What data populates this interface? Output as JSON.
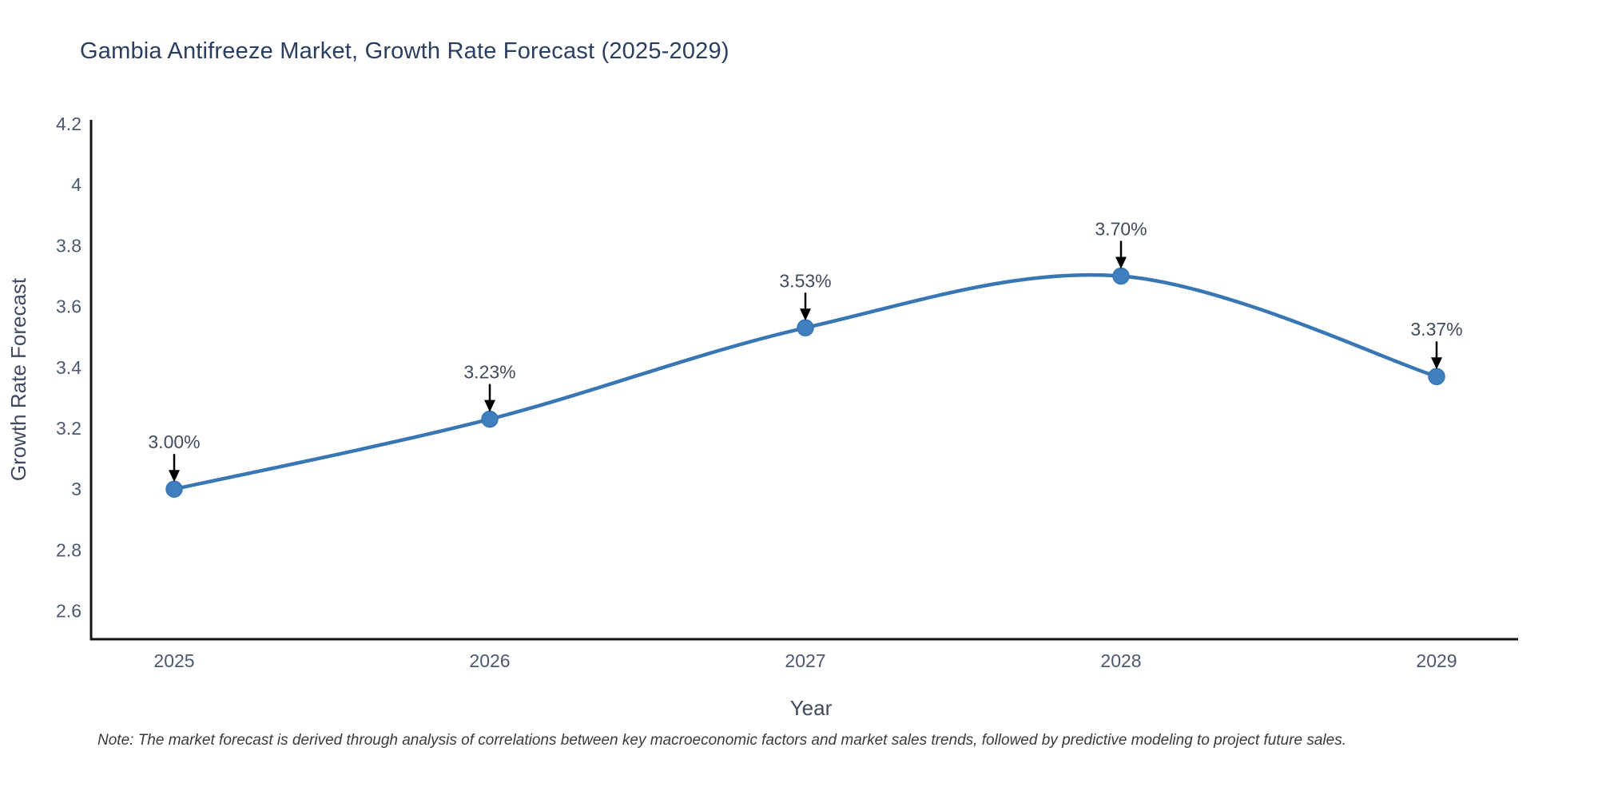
{
  "title": "Gambia Antifreeze Market, Growth Rate Forecast (2025-2029)",
  "note": "Note: The market forecast is derived through analysis of correlations between key macroeconomic factors and market sales trends, followed by predictive modeling to project future sales.",
  "colors": {
    "title_text": "#2a3f5f",
    "tick_text": "#4c5870",
    "axis_title_text": "#3f4a5f",
    "annotation_text": "#404b5e",
    "axis_line": "#141414",
    "line": "#3876b4",
    "marker": "#3f7fbd",
    "arrow": "#000000",
    "background": "#ffffff"
  },
  "chart_data": {
    "type": "line",
    "title": "Gambia Antifreeze Market, Growth Rate Forecast (2025-2029)",
    "xlabel": "Year",
    "ylabel": "Growth Rate Forecast",
    "categories": [
      "2025",
      "2026",
      "2027",
      "2028",
      "2029"
    ],
    "values": [
      3.0,
      3.23,
      3.53,
      3.7,
      3.37
    ],
    "point_labels": [
      "3.00%",
      "3.23%",
      "3.53%",
      "3.70%",
      "3.37%"
    ],
    "y_tick_labels": [
      "4.2",
      "4",
      "3.8",
      "3.6",
      "3.4",
      "3.2",
      "3",
      "2.8",
      "2.6"
    ],
    "y_tick_values": [
      4.2,
      4.0,
      3.8,
      3.6,
      3.4,
      3.2,
      3.0,
      2.8,
      2.6
    ],
    "ylim": [
      2.51,
      4.21
    ],
    "grid": false,
    "legend": "none",
    "line_shape": "spline",
    "annotations_have_arrows": true
  }
}
